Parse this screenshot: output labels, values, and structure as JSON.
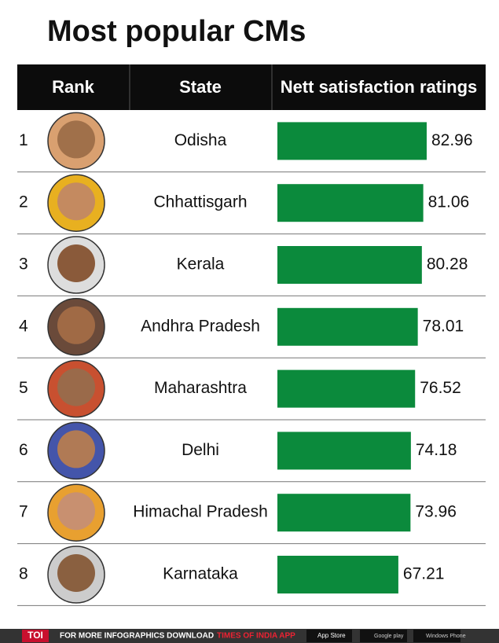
{
  "chart_data": {
    "type": "bar",
    "title": "Most popular CMs",
    "columns": [
      "Rank",
      "State",
      "Nett satisfaction ratings"
    ],
    "ranks": [
      1,
      2,
      3,
      4,
      5,
      6,
      7,
      8
    ],
    "categories": [
      "Odisha",
      "Chhattisgarh",
      "Kerala",
      "Andhra Pradesh",
      "Maharashtra",
      "Delhi",
      "Himachal Pradesh",
      "Karnataka"
    ],
    "values": [
      82.96,
      81.06,
      80.28,
      78.01,
      76.52,
      74.18,
      73.96,
      67.21
    ],
    "color": "#0b8a3c"
  },
  "footer": {
    "brand": "TOI",
    "text": "FOR MORE INFOGRAPHICS DOWNLOAD",
    "app": "TIMES OF INDIA APP",
    "badges": [
      "App Store",
      "Google play",
      "Windows Phone"
    ]
  }
}
